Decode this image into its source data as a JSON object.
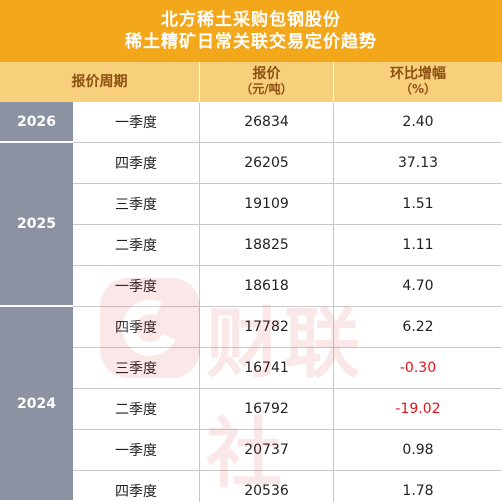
{
  "title": {
    "line1": "北方稀土采购包钢股份",
    "line2": "稀土精矿日常关联交易定价趋势"
  },
  "header": {
    "period": "报价周期",
    "price": "报价",
    "price_unit": "（元/吨）",
    "change": "环比增幅",
    "change_unit": "（%）"
  },
  "years": [
    "2026",
    "2025",
    "2024"
  ],
  "rows": [
    {
      "quarter": "一季度",
      "price": "26834",
      "change": "2.40"
    },
    {
      "quarter": "四季度",
      "price": "26205",
      "change": "37.13"
    },
    {
      "quarter": "三季度",
      "price": "19109",
      "change": "1.51"
    },
    {
      "quarter": "二季度",
      "price": "18825",
      "change": "1.11"
    },
    {
      "quarter": "一季度",
      "price": "18618",
      "change": "4.70"
    },
    {
      "quarter": "四季度",
      "price": "17782",
      "change": "6.22"
    },
    {
      "quarter": "三季度",
      "price": "16741",
      "change": "-0.30"
    },
    {
      "quarter": "二季度",
      "price": "16792",
      "change": "-19.02"
    },
    {
      "quarter": "一季度",
      "price": "20737",
      "change": "0.98"
    },
    {
      "quarter": "四季度",
      "price": "20536",
      "change": "1.78"
    }
  ],
  "watermark": {
    "text": "财联社"
  },
  "colors": {
    "title_bg": "#f3a81b",
    "header_bg": "#f8d07b",
    "year_bg": "#8b92a2",
    "negative": "#e0141e"
  }
}
